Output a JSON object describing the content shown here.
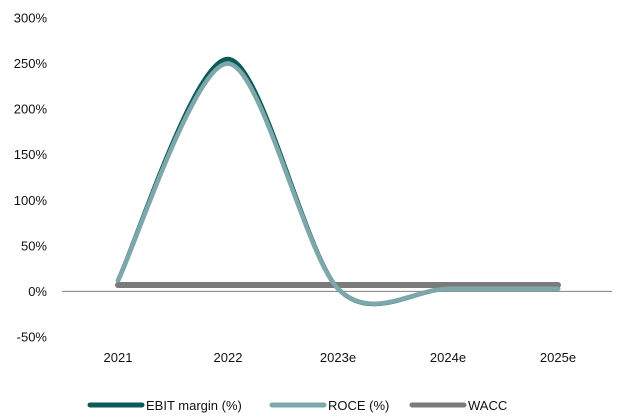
{
  "chart_data": {
    "type": "line",
    "categories": [
      "2021",
      "2022",
      "2023e",
      "2024e",
      "2025e"
    ],
    "ylim": [
      -50,
      300
    ],
    "yticks": [
      300,
      250,
      200,
      150,
      100,
      50,
      0,
      -50
    ],
    "ytick_labels": [
      "300%",
      "250%",
      "200%",
      "150%",
      "100%",
      "50%",
      "0%",
      "-50%"
    ],
    "grid": false,
    "legend_position": "bottom",
    "series": [
      {
        "name": "EBIT margin (%)",
        "values": [
          12,
          255,
          3,
          3,
          3
        ],
        "color": "#0b5a57",
        "smooth": true
      },
      {
        "name": "ROCE (%)",
        "values": [
          12,
          250,
          3,
          3,
          3
        ],
        "color": "#7ea7aa",
        "smooth": true
      },
      {
        "name": "WACC",
        "values": [
          7,
          7,
          7,
          7,
          7
        ],
        "color": "#7b7b7b",
        "smooth": false
      }
    ]
  }
}
